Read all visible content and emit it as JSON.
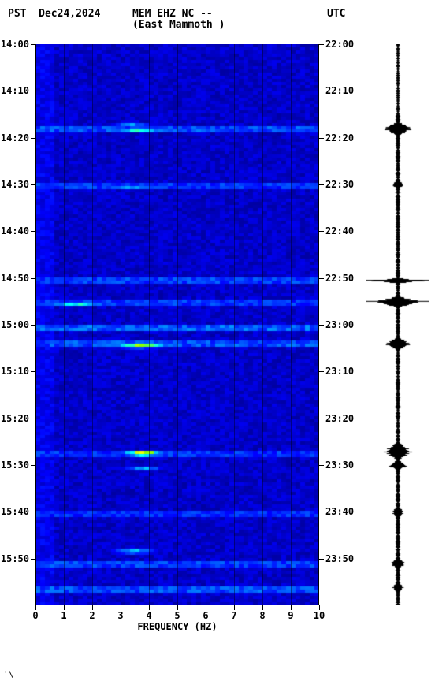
{
  "header": {
    "tz_left": "PST",
    "date": "Dec24,2024",
    "station": "MEM EHZ NC --",
    "location": "(East Mammoth )",
    "tz_right": "UTC"
  },
  "spectrogram": {
    "type": "spectrogram",
    "background_color": "#ffffff",
    "plot_bg_color": "#0000e0",
    "grid_color": "#000000",
    "x_axis": {
      "label": "FREQUENCY (HZ)",
      "min": 0,
      "max": 10,
      "ticks": [
        0,
        1,
        2,
        3,
        4,
        5,
        6,
        7,
        8,
        9,
        10
      ],
      "label_fontsize": 12
    },
    "y_axis_left": {
      "label": "PST",
      "start": "14:00",
      "end": "16:00",
      "ticks": [
        "14:00",
        "14:10",
        "14:20",
        "14:30",
        "14:40",
        "14:50",
        "15:00",
        "15:10",
        "15:20",
        "15:30",
        "15:40",
        "15:50"
      ]
    },
    "y_axis_right": {
      "label": "UTC",
      "start": "22:00",
      "end": "24:00",
      "ticks": [
        "22:00",
        "22:10",
        "22:20",
        "22:30",
        "22:40",
        "22:50",
        "23:00",
        "23:10",
        "23:20",
        "23:30",
        "23:40",
        "23:50"
      ]
    },
    "colormap": {
      "name": "jet-like",
      "stops": [
        {
          "v": 0.0,
          "c": "#00008b"
        },
        {
          "v": 0.15,
          "c": "#0000ff"
        },
        {
          "v": 0.35,
          "c": "#0080ff"
        },
        {
          "v": 0.5,
          "c": "#00ffff"
        },
        {
          "v": 0.65,
          "c": "#80ff00"
        },
        {
          "v": 0.8,
          "c": "#ffff00"
        },
        {
          "v": 0.9,
          "c": "#ff8000"
        },
        {
          "v": 1.0,
          "c": "#ff0000"
        }
      ]
    },
    "events": [
      {
        "time_min": 18.0,
        "freq_center": 3.6,
        "freq_width": 1.5,
        "intensity": 0.95,
        "duration": 0.7
      },
      {
        "time_min": 17.0,
        "freq_center": 3.3,
        "freq_width": 1.0,
        "intensity": 0.55,
        "duration": 0.8
      },
      {
        "time_min": 30.0,
        "freq_center": 3.4,
        "freq_width": 2.0,
        "intensity": 0.7,
        "duration": 1.0
      },
      {
        "time_min": 55.0,
        "freq_center": 1.4,
        "freq_width": 1.6,
        "intensity": 1.0,
        "duration": 0.8
      },
      {
        "time_min": 60.5,
        "freq_center": 3.6,
        "freq_width": 2.2,
        "intensity": 0.6,
        "duration": 0.6
      },
      {
        "time_min": 64.0,
        "freq_center": 3.6,
        "freq_width": 1.4,
        "intensity": 0.95,
        "duration": 1.0
      },
      {
        "time_min": 87.0,
        "freq_center": 3.7,
        "freq_width": 1.0,
        "intensity": 0.98,
        "duration": 1.5
      },
      {
        "time_min": 90.0,
        "freq_center": 3.7,
        "freq_width": 1.0,
        "intensity": 0.9,
        "duration": 0.8
      },
      {
        "time_min": 108.0,
        "freq_center": 3.4,
        "freq_width": 1.2,
        "intensity": 0.55,
        "duration": 1.2
      },
      {
        "time_min": 111.0,
        "freq_center": 3.9,
        "freq_width": 0.8,
        "intensity": 0.6,
        "duration": 0.8
      }
    ],
    "horizontal_bands": [
      {
        "time_min": 18.0,
        "intensity": 0.35
      },
      {
        "time_min": 30.0,
        "intensity": 0.3
      },
      {
        "time_min": 50.5,
        "intensity": 0.32
      },
      {
        "time_min": 55.0,
        "intensity": 0.3
      },
      {
        "time_min": 60.5,
        "intensity": 0.38
      },
      {
        "time_min": 64.0,
        "intensity": 0.35
      },
      {
        "time_min": 87.0,
        "intensity": 0.3
      },
      {
        "time_min": 100.0,
        "intensity": 0.28
      },
      {
        "time_min": 111.0,
        "intensity": 0.32
      },
      {
        "time_min": 116.5,
        "intensity": 0.35
      }
    ],
    "total_minutes": 120
  },
  "seismogram": {
    "type": "waveform",
    "trace_color": "#000000",
    "background_color": "#ffffff",
    "baseline_amplitude": 0.06,
    "spikes": [
      {
        "time_min": 18.0,
        "amp": 0.55,
        "width": 1.5
      },
      {
        "time_min": 30.0,
        "amp": 0.2,
        "width": 1.2
      },
      {
        "time_min": 50.5,
        "amp": 1.0,
        "width": 0.6,
        "line": true
      },
      {
        "time_min": 55.0,
        "amp": 0.85,
        "width": 1.2,
        "line": true
      },
      {
        "time_min": 64.0,
        "amp": 0.45,
        "width": 1.5
      },
      {
        "time_min": 87.0,
        "amp": 0.5,
        "width": 2.0
      },
      {
        "time_min": 90.0,
        "amp": 0.35,
        "width": 1.2
      },
      {
        "time_min": 100.0,
        "amp": 0.22,
        "width": 1.5
      },
      {
        "time_min": 111.0,
        "amp": 0.25,
        "width": 1.5
      },
      {
        "time_min": 116.0,
        "amp": 0.2,
        "width": 1.5
      }
    ],
    "total_minutes": 120
  },
  "footer_mark": "'\\"
}
